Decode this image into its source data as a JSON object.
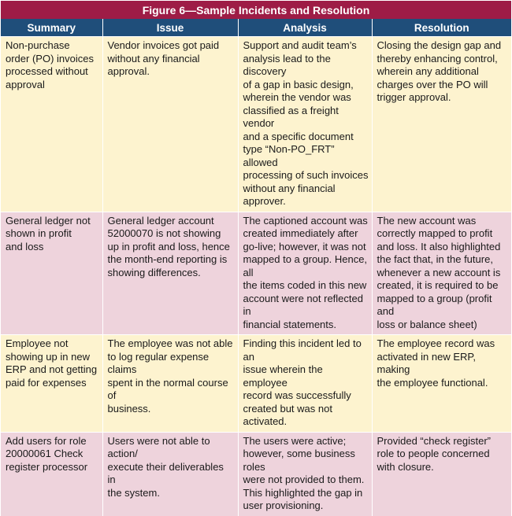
{
  "title": "Figure 6—Sample Incidents and Resolution",
  "columns": [
    "Summary",
    "Issue",
    "Analysis",
    "Resolution"
  ],
  "rows": [
    {
      "summary": "Non-purchase\norder (PO) invoices\nprocessed without\napproval",
      "issue": "Vendor invoices got paid\nwithout any financial approval.",
      "analysis": "Support and audit team’s\nanalysis lead to the discovery\nof a gap in basic design,\nwherein the vendor was\nclassified as a freight vendor\nand a specific document\ntype “Non-PO_FRT” allowed\nprocessing of such invoices\nwithout any financial approver.",
      "resolution": "Closing the design gap and\nthereby enhancing control,\nwherein any additional\ncharges over the PO will\ntrigger approval."
    },
    {
      "summary": "General ledger not\nshown in profit\nand loss",
      "issue": "General ledger account\n52000070 is not showing\nup in profit and loss, hence\nthe month-end reporting is\nshowing differences.",
      "analysis": "The captioned account was\ncreated immediately after\ngo-live; however, it was not\nmapped to a group. Hence, all\nthe items coded in this new\naccount were not reflected in\nfinancial statements.",
      "resolution": "The new account was\ncorrectly mapped to profit\nand loss. It also highlighted\nthe fact that, in the future,\nwhenever a new account is\ncreated, it is required to be\nmapped to a group (profit and\nloss or balance sheet)"
    },
    {
      "summary": "Employee not\nshowing up in new\nERP and not getting\npaid for expenses",
      "issue": "The employee was not able\nto log regular expense claims\nspent in the normal course of\nbusiness.",
      "analysis": "Finding this incident led to an\nissue wherein the employee\nrecord was successfully\ncreated but was not activated.",
      "resolution": "The employee record was\nactivated in new ERP, making\nthe employee functional."
    },
    {
      "summary": "Add users for role\n20000061 Check\nregister processor",
      "issue": "Users were not able to action/\nexecute their deliverables in\nthe system.",
      "analysis": "The users were active;\nhowever, some business roles\nwere not provided to them.\nThis highlighted the gap in\nuser provisioning.",
      "resolution": "Provided “check register”\nrole to people concerned\nwith closure."
    }
  ]
}
